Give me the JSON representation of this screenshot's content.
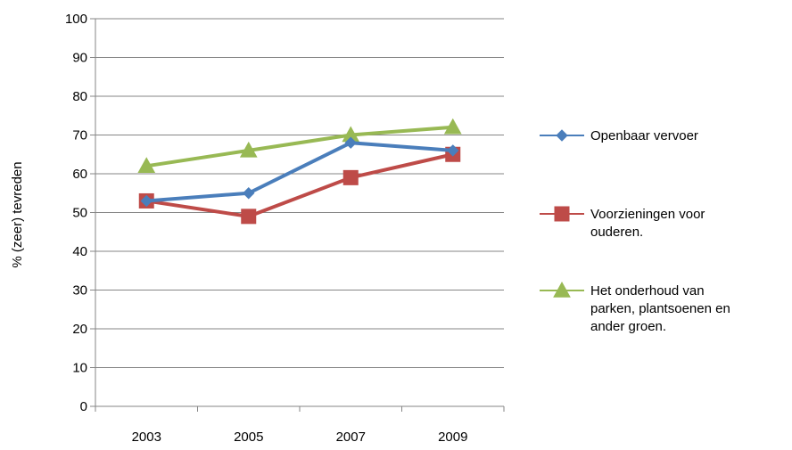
{
  "chart_data": {
    "type": "line",
    "categories": [
      "2003",
      "2005",
      "2007",
      "2009"
    ],
    "ylabel": "% (zeer) tevreden",
    "ylim": [
      0,
      100
    ],
    "yticks": [
      "0",
      "10",
      "20",
      "30",
      "40",
      "50",
      "60",
      "70",
      "80",
      "90",
      "100"
    ],
    "grid": true,
    "legend_position": "right",
    "series": [
      {
        "name": "Openbaar vervoer",
        "legend_lines": [
          "Openbaar vervoer"
        ],
        "values": [
          53,
          55,
          68,
          66
        ],
        "color": "#4a7ebb",
        "marker": "diamond"
      },
      {
        "name": "Voorzieningen voor ouderen.",
        "legend_lines": [
          "Voorzieningen voor",
          "ouderen."
        ],
        "values": [
          53,
          49,
          59,
          65
        ],
        "color": "#be4b48",
        "marker": "square"
      },
      {
        "name": "Het onderhoud van parken, plantsoenen en ander groen.",
        "legend_lines": [
          "Het onderhoud van",
          "parken, plantsoenen en",
          "ander groen."
        ],
        "values": [
          62,
          66,
          70,
          72
        ],
        "color": "#98b954",
        "marker": "triangle"
      }
    ]
  }
}
